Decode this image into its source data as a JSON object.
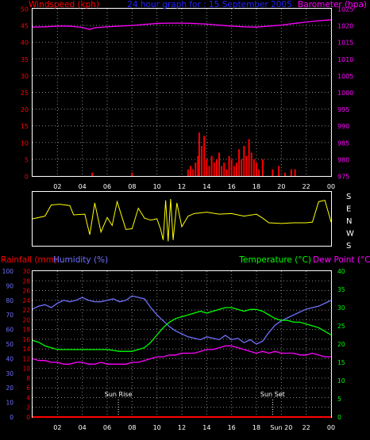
{
  "colors": {
    "background": "#000000",
    "frame": "#ffffff",
    "grid": "#888888",
    "wind": "#ff0000",
    "pressure": "#ff00ff",
    "title": "#2222ff",
    "direction": "#ffff00",
    "rain": "#ff0000",
    "humidity": "#7070ff",
    "temperature": "#00ff00",
    "dewpoint": "#ff00ff",
    "tick_text": "#ffffff"
  },
  "header": {
    "wind_label": "Windspeed (kph)",
    "title": "24 hour graph for : 15 September 2005",
    "pressure_label": "Barometer (hpa)"
  },
  "x_ticks": [
    "02",
    "04",
    "06",
    "08",
    "10",
    "12",
    "14",
    "16",
    "18",
    "20",
    "22",
    "00"
  ],
  "x_ticks_bottom": [
    "02",
    "04",
    "06",
    "08",
    "10",
    "12",
    "14",
    "16",
    "18",
    "Sun 20",
    "22",
    "00"
  ],
  "chart_data": [
    {
      "type": "bar",
      "title": "24 hour graph for : 15 September 2005",
      "ylabel": "Windspeed (kph)",
      "ylim": [
        0,
        50
      ],
      "yticks": [
        0,
        5,
        10,
        15,
        20,
        25,
        30,
        35,
        40,
        45,
        50
      ],
      "xlim": [
        0,
        24
      ],
      "series": [
        {
          "name": "Windspeed (kph)",
          "x": [
            4.8,
            8.0,
            12.5,
            12.7,
            12.9,
            13.1,
            13.3,
            13.4,
            13.6,
            13.8,
            14.0,
            14.2,
            14.4,
            14.6,
            14.8,
            15.0,
            15.2,
            15.4,
            15.6,
            15.8,
            16.0,
            16.2,
            16.4,
            16.6,
            16.8,
            17.0,
            17.2,
            17.4,
            17.6,
            17.8,
            18.0,
            18.2,
            18.5,
            19.3,
            19.8,
            20.3,
            20.8,
            21.1
          ],
          "values": [
            1,
            1,
            2,
            3,
            2,
            4,
            6,
            13,
            9,
            12,
            5,
            3,
            6,
            4,
            5,
            7,
            3,
            4,
            2,
            6,
            5,
            3,
            4,
            8,
            5,
            9,
            6,
            11,
            7,
            5,
            4,
            2,
            5,
            2,
            3,
            1,
            2,
            2
          ]
        },
        {
          "name": "Barometer (hpa)",
          "axis": "right",
          "ylim": [
            975,
            1025
          ],
          "yticks": [
            975,
            980,
            985,
            990,
            995,
            1000,
            1005,
            1010,
            1015,
            1020,
            1025
          ],
          "x": [
            0,
            1,
            2,
            3,
            4,
            4.6,
            5,
            6,
            7,
            8,
            9,
            10,
            11,
            12,
            13,
            14,
            15,
            16,
            17,
            18,
            19,
            20,
            21,
            22,
            23,
            24
          ],
          "values": [
            1019.5,
            1019.6,
            1019.8,
            1019.8,
            1019.4,
            1018.8,
            1019.3,
            1019.6,
            1019.8,
            1020.0,
            1020.3,
            1020.6,
            1020.7,
            1020.7,
            1020.6,
            1020.4,
            1020.1,
            1019.8,
            1019.6,
            1019.5,
            1019.8,
            1020.1,
            1020.6,
            1021.0,
            1021.4,
            1021.7
          ]
        }
      ]
    },
    {
      "type": "line",
      "ylabel_ticks": [
        "S",
        "E",
        "N",
        "W",
        "S"
      ],
      "ylim": [
        0,
        360
      ],
      "xlim": [
        0,
        24
      ],
      "series": [
        {
          "name": "Wind direction",
          "x": [
            0,
            1,
            1.5,
            2.2,
            3.0,
            3.3,
            4.2,
            4.6,
            5.0,
            5.5,
            6.0,
            6.4,
            6.8,
            7.5,
            8.0,
            8.5,
            9.0,
            9.5,
            10.0,
            10.3,
            10.5,
            10.7,
            10.9,
            11.1,
            11.3,
            11.6,
            12.0,
            12.5,
            13,
            14,
            15,
            16,
            17,
            18,
            18.5,
            19,
            20,
            21,
            22,
            22.5,
            23,
            23.5,
            24
          ],
          "values": [
            180,
            200,
            285,
            290,
            280,
            210,
            215,
            60,
            300,
            80,
            190,
            130,
            310,
            100,
            105,
            260,
            185,
            170,
            180,
            100,
            20,
            320,
            10,
            330,
            20,
            300,
            120,
            200,
            220,
            230,
            215,
            220,
            200,
            215,
            185,
            150,
            145,
            150,
            150,
            155,
            310,
            320,
            155
          ]
        }
      ]
    },
    {
      "type": "line",
      "xlim": [
        0,
        24
      ],
      "axes": {
        "rainfall": {
          "label": "Rainfall (mm)",
          "ylim": [
            0,
            30
          ],
          "ticks": [
            0,
            2,
            4,
            6,
            8,
            10,
            12,
            14,
            16,
            18,
            20,
            22,
            24,
            26,
            28,
            30
          ]
        },
        "humidity": {
          "label": "Humidity (%)",
          "ylim": [
            0,
            100
          ],
          "ticks": [
            0,
            10,
            20,
            30,
            40,
            50,
            60,
            70,
            80,
            90,
            100
          ]
        },
        "temperature": {
          "label": "Temperature (°C)",
          "ylim": [
            0,
            40
          ],
          "ticks": [
            0,
            5,
            10,
            15,
            20,
            25,
            30,
            35,
            40
          ]
        }
      },
      "legend": {
        "rain": "Rainfall (mm)",
        "humidity": "Humidity (%)",
        "temp": "Temperature (°C)",
        "dew": "Dew Point (°C)"
      },
      "annotations": [
        {
          "label": "Sun Rise",
          "x": 6.9
        },
        {
          "label": "Sun Set",
          "x": 19.3
        }
      ],
      "series": [
        {
          "name": "Rainfall (mm)",
          "axis": "rainfall",
          "x": [
            0,
            24
          ],
          "values": [
            0,
            0
          ]
        },
        {
          "name": "Humidity (%)",
          "axis": "humidity",
          "x": [
            0,
            0.5,
            1,
            1.5,
            2,
            2.5,
            3,
            3.5,
            4,
            4.5,
            5,
            5.5,
            6,
            6.5,
            7,
            7.5,
            8,
            8.5,
            9,
            9.5,
            10,
            10.5,
            11,
            11.5,
            12,
            12.5,
            13,
            13.5,
            14,
            14.5,
            15,
            15.5,
            16,
            16.5,
            17,
            17.5,
            18,
            18.5,
            19,
            19.5,
            20,
            20.5,
            21,
            21.5,
            22,
            22.5,
            23,
            23.5,
            24
          ],
          "values": [
            74,
            76,
            77,
            75,
            78,
            80,
            79,
            80,
            82,
            80,
            79,
            79,
            80,
            81,
            79,
            80,
            83,
            82,
            81,
            75,
            70,
            66,
            62,
            59,
            57,
            55,
            54,
            53,
            55,
            54,
            53,
            56,
            53,
            54,
            51,
            53,
            50,
            52,
            58,
            63,
            66,
            68,
            70,
            72,
            74,
            75,
            76,
            78,
            80
          ]
        },
        {
          "name": "Temperature (°C)",
          "axis": "temperature",
          "x": [
            0,
            0.5,
            1,
            1.5,
            2,
            3,
            4,
            5,
            6,
            7,
            7.5,
            8,
            8.5,
            9,
            9.5,
            10,
            10.5,
            11,
            11.5,
            12,
            12.5,
            13,
            13.5,
            14,
            14.5,
            15,
            15.5,
            16,
            16.5,
            17,
            17.5,
            18,
            18.5,
            19,
            19.5,
            20,
            20.5,
            21,
            21.5,
            22,
            22.5,
            23,
            23.5,
            24
          ],
          "values": [
            21.0,
            20.5,
            19.5,
            19.0,
            18.5,
            18.5,
            18.5,
            18.5,
            18.5,
            18.0,
            18.0,
            18.0,
            18.5,
            19.0,
            20.5,
            22.5,
            24.5,
            26.0,
            27.0,
            27.5,
            28.0,
            28.5,
            29.0,
            28.5,
            29.0,
            29.5,
            30.0,
            30.0,
            29.5,
            29.0,
            29.5,
            29.5,
            29.0,
            28.0,
            27.0,
            26.5,
            26.5,
            26.0,
            26.0,
            25.5,
            25.0,
            24.5,
            23.5,
            22.5
          ]
        },
        {
          "name": "Dew Point (°C)",
          "axis": "temperature",
          "x": [
            0,
            0.5,
            1,
            1.5,
            2,
            2.5,
            3,
            3.5,
            4,
            4.5,
            5,
            5.5,
            6,
            6.5,
            7,
            7.5,
            8,
            8.5,
            9,
            9.5,
            10,
            10.5,
            11,
            11.5,
            12,
            12.5,
            13,
            13.5,
            14,
            14.5,
            15,
            15.5,
            16,
            16.5,
            17,
            17.5,
            18,
            18.5,
            19,
            19.5,
            20,
            20.5,
            21,
            21.5,
            22,
            22.5,
            23,
            23.5,
            24
          ],
          "values": [
            16.0,
            15.5,
            15.5,
            15.0,
            15.0,
            14.5,
            14.5,
            15.0,
            15.0,
            14.5,
            14.5,
            15.0,
            14.5,
            14.5,
            14.5,
            14.5,
            15.0,
            15.0,
            15.5,
            16.0,
            16.5,
            16.5,
            17.0,
            17.0,
            17.5,
            17.5,
            17.5,
            18.0,
            18.5,
            18.5,
            19.0,
            19.5,
            19.5,
            19.0,
            18.5,
            18.0,
            17.5,
            18.0,
            17.5,
            18.0,
            17.5,
            17.5,
            17.5,
            17.0,
            17.0,
            17.5,
            17.0,
            16.5,
            16.5
          ]
        }
      ]
    }
  ]
}
